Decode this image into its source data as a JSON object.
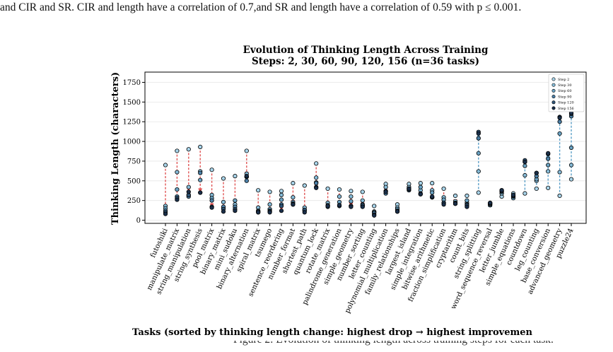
{
  "caption_top": "and CIR and SR. CIR and length have a correlation of 0.7,and SR and length have a correlation of 0.59 with p ≤ 0.001.",
  "caption_bottom": "Figure 2: Evolution of thinking length across training steps for each task.",
  "colors": {
    "drop_arrow": "#e05555",
    "rise_arrow": "#5b9fc8",
    "grid": "#e6e6e6",
    "step_colors": [
      "#a8d4ea",
      "#86bbd8",
      "#6aa3c4",
      "#4b7fa6",
      "#2f5578",
      "#1a2f4a"
    ]
  },
  "chart_data": {
    "type": "scatter",
    "title": "Evolution of Thinking Length Across Training",
    "subtitle": "Steps: 2, 30, 60, 90, 120, 156 (n=36 tasks)",
    "xlabel": "Tasks (sorted by thinking length change: highest drop → highest improvemen",
    "ylabel": "Thinking Length (characters)",
    "ylim": [
      -40,
      1880
    ],
    "yticks": [
      0,
      250,
      500,
      750,
      1000,
      1250,
      1500,
      1750
    ],
    "grid": true,
    "legend_position": "top-right",
    "legend": [
      "Step 2",
      "Step 30",
      "Step 60",
      "Step 90",
      "Step 120",
      "Step 156"
    ],
    "categories": [
      "futoshiki",
      "manipulate_matrix",
      "string_manipulation",
      "string_synthesis",
      "pool_matrix",
      "binary_matrix",
      "mini_sudoku",
      "binary_alternation",
      "spiral_matrix",
      "tsumego",
      "sentence_reordering",
      "number_format",
      "shortest_path",
      "quantum_lock",
      "rotate_matrix",
      "palindrome_generation",
      "simple_geometry",
      "number_sorting",
      "letter_counting",
      "polynomial_multiplication",
      "family_relationships",
      "largest_island",
      "simple_integration",
      "bitwise_arithmetic",
      "fraction_simplification",
      "cryptarithm",
      "count_bits",
      "string_splitting",
      "word_sequence_reversal",
      "letter_jumble",
      "simple_equations",
      "countdown",
      "leg_counting",
      "base_conversion",
      "advanced_geometry",
      "puzzle24"
    ],
    "series": [
      {
        "name": "Step 2",
        "values": [
          700,
          880,
          900,
          930,
          640,
          530,
          560,
          880,
          380,
          360,
          370,
          470,
          440,
          720,
          400,
          390,
          370,
          360,
          180,
          460,
          200,
          460,
          470,
          470,
          400,
          310,
          310,
          350,
          190,
          300,
          340,
          340,
          400,
          410,
          310,
          520
        ]
      },
      {
        "name": "Step 30",
        "values": [
          180,
          610,
          420,
          620,
          320,
          230,
          200,
          590,
          160,
          200,
          320,
          290,
          160,
          540,
          220,
          300,
          300,
          250,
          110,
          420,
          160,
          420,
          380,
          380,
          290,
          240,
          220,
          620,
          210,
          340,
          300,
          570,
          500,
          620,
          610,
          700
        ]
      },
      {
        "name": "Step 60",
        "values": [
          150,
          390,
          320,
          510,
          280,
          160,
          250,
          550,
          120,
          140,
          260,
          230,
          130,
          480,
          190,
          230,
          240,
          200,
          100,
          370,
          140,
          400,
          420,
          350,
          260,
          220,
          250,
          850,
          200,
          360,
          280,
          690,
          520,
          700,
          1100,
          920
        ]
      },
      {
        "name": "Step 90",
        "values": [
          120,
          300,
          300,
          600,
          250,
          170,
          170,
          500,
          110,
          120,
          200,
          210,
          120,
          470,
          180,
          190,
          180,
          180,
          90,
          340,
          120,
          380,
          330,
          290,
          220,
          210,
          200,
          1040,
          210,
          380,
          300,
          740,
          560,
          780,
          1250,
          1320
        ]
      },
      {
        "name": "Step 120",
        "values": [
          100,
          280,
          320,
          350,
          170,
          140,
          140,
          550,
          100,
          110,
          180,
          200,
          130,
          420,
          170,
          180,
          180,
          190,
          70,
          370,
          110,
          390,
          340,
          290,
          220,
          210,
          190,
          1120,
          220,
          370,
          310,
          760,
          600,
          840,
          1310,
          1350
        ]
      },
      {
        "name": "Step 156",
        "values": [
          80,
          260,
          360,
          350,
          160,
          110,
          120,
          560,
          100,
          100,
          120,
          200,
          100,
          410,
          180,
          190,
          170,
          170,
          60,
          360,
          110,
          400,
          330,
          300,
          200,
          210,
          170,
          1100,
          220,
          380,
          320,
          740,
          600,
          850,
          1300,
          1360
        ]
      }
    ]
  }
}
